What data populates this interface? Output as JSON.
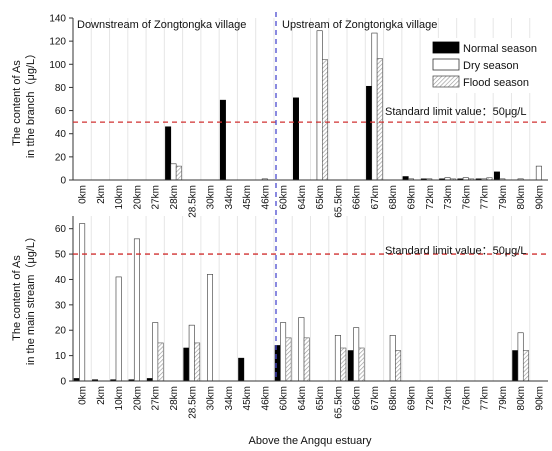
{
  "chart_data": [
    {
      "type": "bar",
      "panel": "branch",
      "ylabel_line1": "The content of As",
      "ylabel_line2": "in tthe branch（μg/L）",
      "ylim": [
        0,
        140
      ],
      "yticks": [
        "0",
        "20",
        "40",
        "60",
        "80",
        "100",
        "120",
        "140"
      ],
      "categories": [
        "0km",
        "2km",
        "10km",
        "20km",
        "27km",
        "28km",
        "28.5km",
        "30km",
        "34km",
        "45km",
        "46km",
        "60km",
        "64km",
        "65km",
        "65.5km",
        "66km",
        "67km",
        "68km",
        "69km",
        "72km",
        "73km",
        "76km",
        "77km",
        "79km",
        "80km",
        "90km"
      ],
      "series": [
        {
          "name": "Normal season",
          "values": [
            0,
            0,
            0,
            0,
            0,
            46,
            0,
            0,
            69,
            0,
            0,
            0,
            71,
            0,
            0,
            0,
            81,
            0,
            3,
            1,
            1,
            1,
            1,
            7,
            0,
            0
          ]
        },
        {
          "name": "Dry season",
          "values": [
            0,
            0,
            0,
            0,
            0,
            14,
            0,
            0,
            0,
            0,
            1,
            0,
            0,
            129,
            0,
            0,
            127,
            0,
            1,
            1,
            2,
            2,
            1,
            1,
            1,
            12
          ]
        },
        {
          "name": "Flood season",
          "values": [
            0,
            0,
            0,
            0,
            0,
            12,
            0,
            0,
            0,
            0,
            0,
            0,
            0,
            104,
            0,
            0,
            105,
            0,
            0,
            0,
            1,
            1,
            2,
            0,
            0,
            0
          ]
        }
      ],
      "region_left": "Downstream of Zongtongka village",
      "region_right": "Upstream of Zongtongka village",
      "limit_label": "Standard limit value：50μg/L",
      "limit_value": 50,
      "legend_position": "top-right"
    },
    {
      "type": "bar",
      "panel": "main stream",
      "ylabel_line1": "The content of As",
      "ylabel_line2": "in the main stream（μg/L）",
      "ylim": [
        0,
        65
      ],
      "yticks": [
        "0",
        "10",
        "20",
        "30",
        "40",
        "50",
        "60"
      ],
      "xlabel": "Above the Angqu estuary",
      "categories": [
        "0km",
        "2km",
        "10km",
        "20km",
        "27km",
        "28km",
        "28.5km",
        "30km",
        "34km",
        "45km",
        "46km",
        "60km",
        "64km",
        "65km",
        "65.5km",
        "66km",
        "67km",
        "68km",
        "69km",
        "72km",
        "73km",
        "76km",
        "77km",
        "79km",
        "80km",
        "90km"
      ],
      "series": [
        {
          "name": "Normal season",
          "values": [
            1,
            0.5,
            0.5,
            0.5,
            1,
            0,
            13,
            0,
            0,
            9,
            0,
            14,
            0,
            0,
            0,
            12,
            0,
            0,
            0,
            0,
            0,
            0,
            0,
            0,
            12,
            0
          ]
        },
        {
          "name": "Dry season",
          "values": [
            62,
            0,
            41,
            56,
            23,
            0,
            22,
            42,
            0,
            0,
            0,
            23,
            25,
            0,
            18,
            21,
            0,
            18,
            0,
            0,
            0,
            0,
            0,
            0,
            19,
            0
          ]
        },
        {
          "name": "Flood season",
          "values": [
            0,
            0,
            0,
            0,
            15,
            0,
            15,
            0,
            0,
            0,
            0,
            17,
            17,
            0,
            13,
            13,
            0,
            12,
            0,
            0,
            0,
            0,
            0,
            0,
            12,
            0
          ]
        }
      ],
      "limit_label": "Standard limit value：50μg/L",
      "limit_value": 50
    }
  ],
  "colors": {
    "normal": "#000000",
    "dry": "#ffffff",
    "flood_hatch": "#9a9a9a",
    "limit_line": "#d03030",
    "divider": "#4a4ad0",
    "grid": "#e6e6e6"
  }
}
